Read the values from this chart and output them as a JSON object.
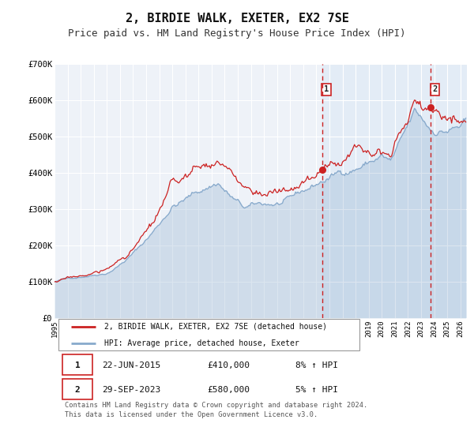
{
  "title": "2, BIRDIE WALK, EXETER, EX2 7SE",
  "subtitle": "Price paid vs. HM Land Registry's House Price Index (HPI)",
  "ylim": [
    0,
    700000
  ],
  "xlim_start": 1995.0,
  "xlim_end": 2026.5,
  "yticks": [
    0,
    100000,
    200000,
    300000,
    400000,
    500000,
    600000,
    700000
  ],
  "ytick_labels": [
    "£0",
    "£100K",
    "£200K",
    "£300K",
    "£400K",
    "£500K",
    "£600K",
    "£700K"
  ],
  "xticks": [
    1995,
    1996,
    1997,
    1998,
    1999,
    2000,
    2001,
    2002,
    2003,
    2004,
    2005,
    2006,
    2007,
    2008,
    2009,
    2010,
    2011,
    2012,
    2013,
    2014,
    2015,
    2016,
    2017,
    2018,
    2019,
    2020,
    2021,
    2022,
    2023,
    2024,
    2025,
    2026
  ],
  "line1_color": "#cc2222",
  "line2_color": "#88aacc",
  "line2_fill_color": "#dce8f5",
  "point1_x": 2015.47,
  "point1_y": 410000,
  "point2_x": 2023.75,
  "point2_y": 580000,
  "vline1_x": 2015.47,
  "vline2_x": 2023.75,
  "vline_color": "#cc2222",
  "legend_line1": "2, BIRDIE WALK, EXETER, EX2 7SE (detached house)",
  "legend_line2": "HPI: Average price, detached house, Exeter",
  "table_row1": [
    "1",
    "22-JUN-2015",
    "£410,000",
    "8% ↑ HPI"
  ],
  "table_row2": [
    "2",
    "29-SEP-2023",
    "£580,000",
    "5% ↑ HPI"
  ],
  "footnote": "Contains HM Land Registry data © Crown copyright and database right 2024.\nThis data is licensed under the Open Government Licence v3.0.",
  "background_color": "#ffffff",
  "plot_bg_color": "#eef2f8",
  "grid_color": "#ffffff",
  "title_fontsize": 11,
  "subtitle_fontsize": 9
}
